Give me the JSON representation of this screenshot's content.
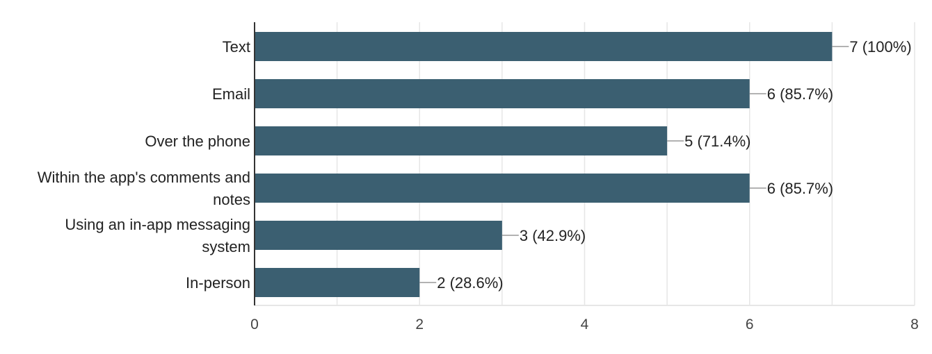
{
  "chart_data": {
    "type": "bar",
    "orientation": "horizontal",
    "title": "",
    "xlabel": "",
    "ylabel": "",
    "categories": [
      "Text",
      "Email",
      "Over the phone",
      "Within the app's comments and notes",
      "Using an in-app messaging system",
      "In-person"
    ],
    "values": [
      7,
      6,
      5,
      6,
      3,
      2
    ],
    "data_labels": [
      "7 (100%)",
      "6 (85.7%)",
      "5 (71.4%)",
      "6 (85.7%)",
      "3 (42.9%)",
      "2 (28.6%)"
    ],
    "xlim": [
      0,
      8
    ],
    "x_ticks": [
      0,
      2,
      4,
      6,
      8
    ],
    "grid": true,
    "legend": "none",
    "colors": {
      "bar": "#3b5f71",
      "grid": "#e6e6e6",
      "axis": "#333333",
      "leader": "#999999"
    }
  }
}
